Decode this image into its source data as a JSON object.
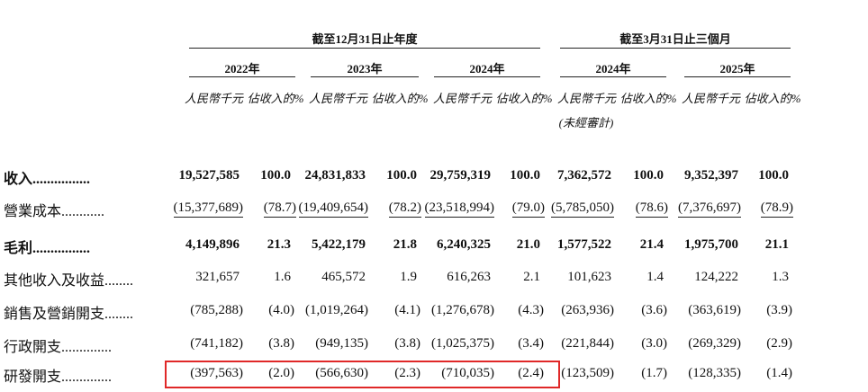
{
  "header": {
    "group_year": "截至12月31日止年度",
    "group_quarter": "截至3月31日止三個月",
    "periods": [
      "2022年",
      "2023年",
      "2024年",
      "2024年",
      "2025年"
    ],
    "unit_rmb": "人民幣千元",
    "unit_pct": "佔收入的%",
    "unaudited": "(未經審計)"
  },
  "rows": [
    {
      "label": "收入",
      "dots": "................",
      "bold": true,
      "values": [
        "19,527,585",
        "100.0",
        "24,831,833",
        "100.0",
        "29,759,319",
        "100.0",
        "7,362,572",
        "100.0",
        "9,352,397",
        "100.0"
      ]
    },
    {
      "label": "營業成本",
      "dots": "............",
      "bold": false,
      "values": [
        "(15,377,689)",
        "(78.7)",
        "(19,409,654)",
        "(78.2)",
        "(23,518,994)",
        "(79.0)",
        "(5,785,050)",
        "(78.6)",
        "(7,376,697)",
        "(78.9)"
      ]
    },
    {
      "label": "毛利",
      "dots": "................",
      "bold": true,
      "values": [
        "4,149,896",
        "21.3",
        "5,422,179",
        "21.8",
        "6,240,325",
        "21.0",
        "1,577,522",
        "21.4",
        "1,975,700",
        "21.1"
      ]
    },
    {
      "label": "其他收入及收益",
      "dots": "........",
      "bold": false,
      "values": [
        "321,657",
        "1.6",
        "465,572",
        "1.9",
        "616,263",
        "2.1",
        "101,623",
        "1.4",
        "124,222",
        "1.3"
      ]
    },
    {
      "label": "銷售及營銷開支",
      "dots": "........",
      "bold": false,
      "values": [
        "(785,288)",
        "(4.0)",
        "(1,019,264)",
        "(4.1)",
        "(1,276,678)",
        "(4.3)",
        "(263,936)",
        "(3.6)",
        "(363,619)",
        "(3.9)"
      ]
    },
    {
      "label": "行政開支",
      "dots": "..............",
      "bold": false,
      "values": [
        "(741,182)",
        "(3.8)",
        "(949,135)",
        "(3.8)",
        "(1,025,375)",
        "(3.4)",
        "(221,844)",
        "(3.0)",
        "(269,329)",
        "(2.9)"
      ]
    },
    {
      "label": "研發開支",
      "dots": "..............",
      "bold": false,
      "values": [
        "(397,563)",
        "(2.0)",
        "(566,630)",
        "(2.3)",
        "(710,035)",
        "(2.4)",
        "(123,509)",
        "(1.7)",
        "(128,335)",
        "(1.4)"
      ]
    }
  ]
}
